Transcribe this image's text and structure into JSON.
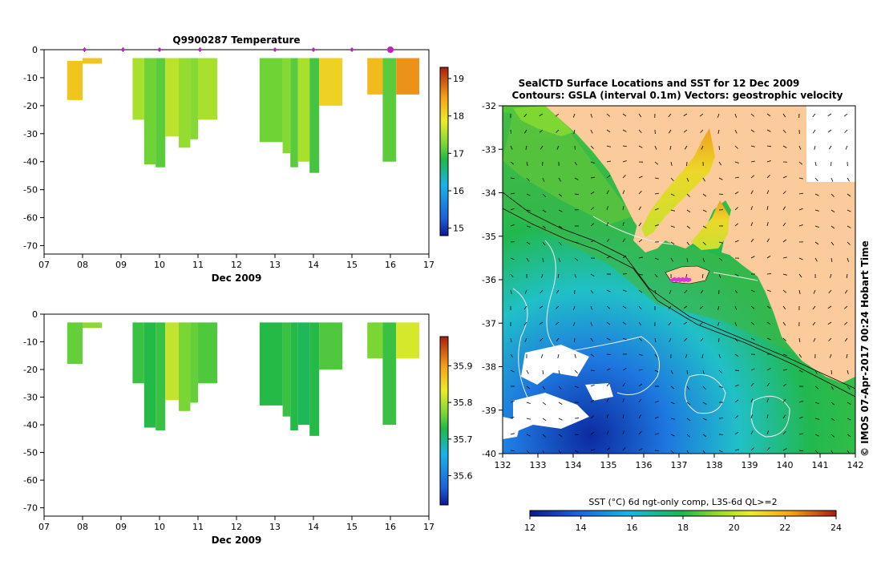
{
  "chart_data": [
    {
      "id": "temperature",
      "type": "heatmap",
      "title": "Q9900287  Temperature",
      "xlabel": "Dec 2009",
      "ylabel": "",
      "xlim": [
        7,
        17
      ],
      "ylim": [
        -73,
        0
      ],
      "x_tick_labels": [
        "07",
        "08",
        "09",
        "10",
        "11",
        "12",
        "13",
        "14",
        "15",
        "16",
        "17"
      ],
      "y_ticks": [
        0,
        -10,
        -20,
        -30,
        -40,
        -50,
        -60,
        -70
      ],
      "markers_x": [
        8.05,
        9.05,
        10.0,
        11.05,
        13.0,
        14.0,
        15.0,
        16.0
      ],
      "colorbar": {
        "range": [
          14.8,
          19.3
        ],
        "ticks": [
          15,
          16,
          17,
          18,
          19
        ]
      },
      "profiles": [
        {
          "x0": 7.6,
          "x1": 8.0,
          "top": -4,
          "bottom": -18,
          "v": 18.2
        },
        {
          "x0": 8.0,
          "x1": 8.5,
          "top": -3,
          "bottom": -5,
          "v": 18.2
        },
        {
          "x0": 9.3,
          "x1": 9.6,
          "top": -3,
          "bottom": -25,
          "v": 17.5
        },
        {
          "x0": 9.6,
          "x1": 9.9,
          "top": -3,
          "bottom": -41,
          "v": 17.2
        },
        {
          "x0": 9.9,
          "x1": 10.15,
          "top": -3,
          "bottom": -42,
          "v": 17.1
        },
        {
          "x0": 10.15,
          "x1": 10.5,
          "top": -3,
          "bottom": -31,
          "v": 17.6
        },
        {
          "x0": 10.5,
          "x1": 10.8,
          "top": -3,
          "bottom": -35,
          "v": 17.4
        },
        {
          "x0": 10.8,
          "x1": 11.0,
          "top": -3,
          "bottom": -32,
          "v": 17.3
        },
        {
          "x0": 11.0,
          "x1": 11.5,
          "top": -3,
          "bottom": -25,
          "v": 17.5
        },
        {
          "x0": 12.6,
          "x1": 13.2,
          "top": -3,
          "bottom": -33,
          "v": 17.2
        },
        {
          "x0": 13.2,
          "x1": 13.4,
          "top": -3,
          "bottom": -37,
          "v": 17.3
        },
        {
          "x0": 13.4,
          "x1": 13.6,
          "top": -3,
          "bottom": -42,
          "v": 17.1
        },
        {
          "x0": 13.6,
          "x1": 13.9,
          "top": -3,
          "bottom": -40,
          "v": 17.5
        },
        {
          "x0": 13.9,
          "x1": 14.15,
          "top": -3,
          "bottom": -44,
          "v": 17.0
        },
        {
          "x0": 14.15,
          "x1": 14.75,
          "top": -3,
          "bottom": -20,
          "v": 18.1
        },
        {
          "x0": 15.4,
          "x1": 15.8,
          "top": -3,
          "bottom": -16,
          "v": 18.3
        },
        {
          "x0": 15.8,
          "x1": 16.15,
          "top": -3,
          "bottom": -40,
          "v": 17.1
        },
        {
          "x0": 16.15,
          "x1": 16.75,
          "top": -3,
          "bottom": -16,
          "v": 18.6
        }
      ]
    },
    {
      "id": "salinity",
      "type": "heatmap",
      "title": "",
      "xlabel": "Dec 2009",
      "ylabel": "",
      "xlim": [
        7,
        17
      ],
      "ylim": [
        -73,
        0
      ],
      "x_tick_labels": [
        "07",
        "08",
        "09",
        "10",
        "11",
        "12",
        "13",
        "14",
        "15",
        "16",
        "17"
      ],
      "y_ticks": [
        0,
        -10,
        -20,
        -30,
        -40,
        -50,
        -60,
        -70
      ],
      "colorbar": {
        "range": [
          35.52,
          35.98
        ],
        "ticks": [
          35.6,
          35.7,
          35.8,
          35.9
        ]
      },
      "profiles": [
        {
          "x0": 7.6,
          "x1": 8.0,
          "top": -3,
          "bottom": -18,
          "v": 35.76
        },
        {
          "x0": 8.0,
          "x1": 8.5,
          "top": -3,
          "bottom": -5,
          "v": 35.78
        },
        {
          "x0": 9.3,
          "x1": 9.6,
          "top": -3,
          "bottom": -25,
          "v": 35.74
        },
        {
          "x0": 9.6,
          "x1": 9.9,
          "top": -3,
          "bottom": -41,
          "v": 35.73
        },
        {
          "x0": 9.9,
          "x1": 10.15,
          "top": -3,
          "bottom": -42,
          "v": 35.74
        },
        {
          "x0": 10.15,
          "x1": 10.5,
          "top": -3,
          "bottom": -31,
          "v": 35.81
        },
        {
          "x0": 10.5,
          "x1": 10.8,
          "top": -3,
          "bottom": -35,
          "v": 35.77
        },
        {
          "x0": 10.8,
          "x1": 11.0,
          "top": -3,
          "bottom": -32,
          "v": 35.76
        },
        {
          "x0": 11.0,
          "x1": 11.5,
          "top": -3,
          "bottom": -25,
          "v": 35.75
        },
        {
          "x0": 12.6,
          "x1": 13.2,
          "top": -3,
          "bottom": -33,
          "v": 35.73
        },
        {
          "x0": 13.2,
          "x1": 13.4,
          "top": -3,
          "bottom": -37,
          "v": 35.74
        },
        {
          "x0": 13.4,
          "x1": 13.6,
          "top": -3,
          "bottom": -42,
          "v": 35.73
        },
        {
          "x0": 13.6,
          "x1": 13.9,
          "top": -3,
          "bottom": -40,
          "v": 35.72
        },
        {
          "x0": 13.9,
          "x1": 14.15,
          "top": -3,
          "bottom": -44,
          "v": 35.73
        },
        {
          "x0": 14.15,
          "x1": 14.75,
          "top": -3,
          "bottom": -20,
          "v": 35.75
        },
        {
          "x0": 15.4,
          "x1": 15.8,
          "top": -3,
          "bottom": -16,
          "v": 35.77
        },
        {
          "x0": 15.8,
          "x1": 16.15,
          "top": -3,
          "bottom": -40,
          "v": 35.74
        },
        {
          "x0": 16.15,
          "x1": 16.75,
          "top": -3,
          "bottom": -16,
          "v": 35.82
        }
      ]
    },
    {
      "id": "sst-map",
      "type": "heatmap",
      "title": "SealCTD Surface Locations and SST for 12 Dec 2009",
      "subtitle": "Contours: GSLA (interval 0.1m) Vectors: geostrophic velocity",
      "xlabel": "",
      "ylabel": "",
      "xlim": [
        132,
        142
      ],
      "ylim": [
        -40,
        -32
      ],
      "x_tick_labels": [
        "132",
        "133",
        "134",
        "135",
        "136",
        "137",
        "138",
        "139",
        "140",
        "141",
        "142"
      ],
      "y_tick_labels": [
        "-32",
        "-33",
        "-34",
        "-35",
        "-36",
        "-37",
        "-38",
        "-39",
        "-40"
      ],
      "colorbar": {
        "label": "SST (°C) 6d ngt-only comp, L3S-6d QL>=2",
        "range": [
          12,
          24
        ],
        "tick_labels": [
          "12",
          "14",
          "16",
          "18",
          "20",
          "22",
          "24"
        ]
      },
      "seal_ctd_locations": {
        "lon_range": [
          136.8,
          137.3
        ],
        "lat": -36.0
      },
      "credit": "© IMOS 07-Apr-2017 00:24 Hobart Time"
    }
  ]
}
